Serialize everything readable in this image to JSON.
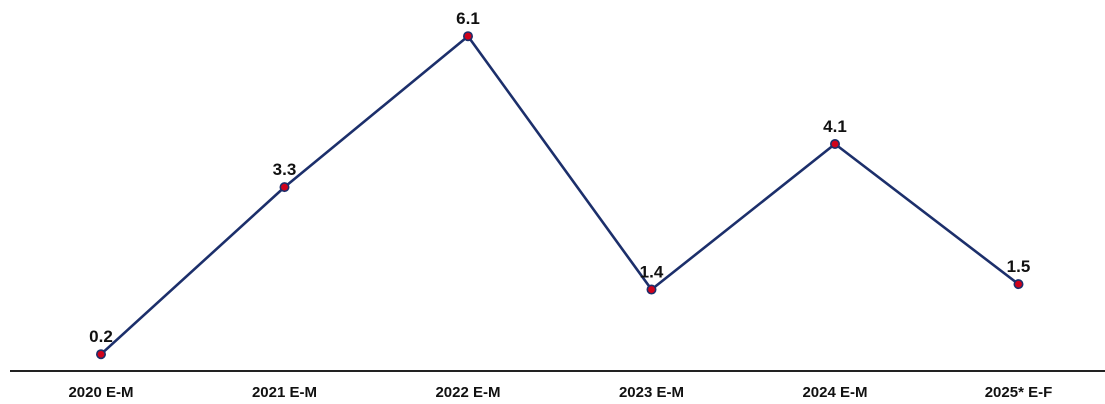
{
  "chart_data": {
    "type": "line",
    "categories": [
      "2020 E-M",
      "2021 E-M",
      "2022 E-M",
      "2023 E-M",
      "2024 E-M",
      "2025* E-F"
    ],
    "series": [
      {
        "values": [
          0.2,
          3.3,
          6.1,
          1.4,
          4.1,
          1.5
        ]
      }
    ],
    "data_labels": [
      "0.2",
      "3.3",
      "6.1",
      "1.4",
      "4.1",
      "1.5"
    ],
    "ylim": [
      0,
      6.5
    ],
    "grid": false,
    "legend": "none",
    "line_color": "#1c2f6b",
    "marker_color": "#d0021b"
  }
}
